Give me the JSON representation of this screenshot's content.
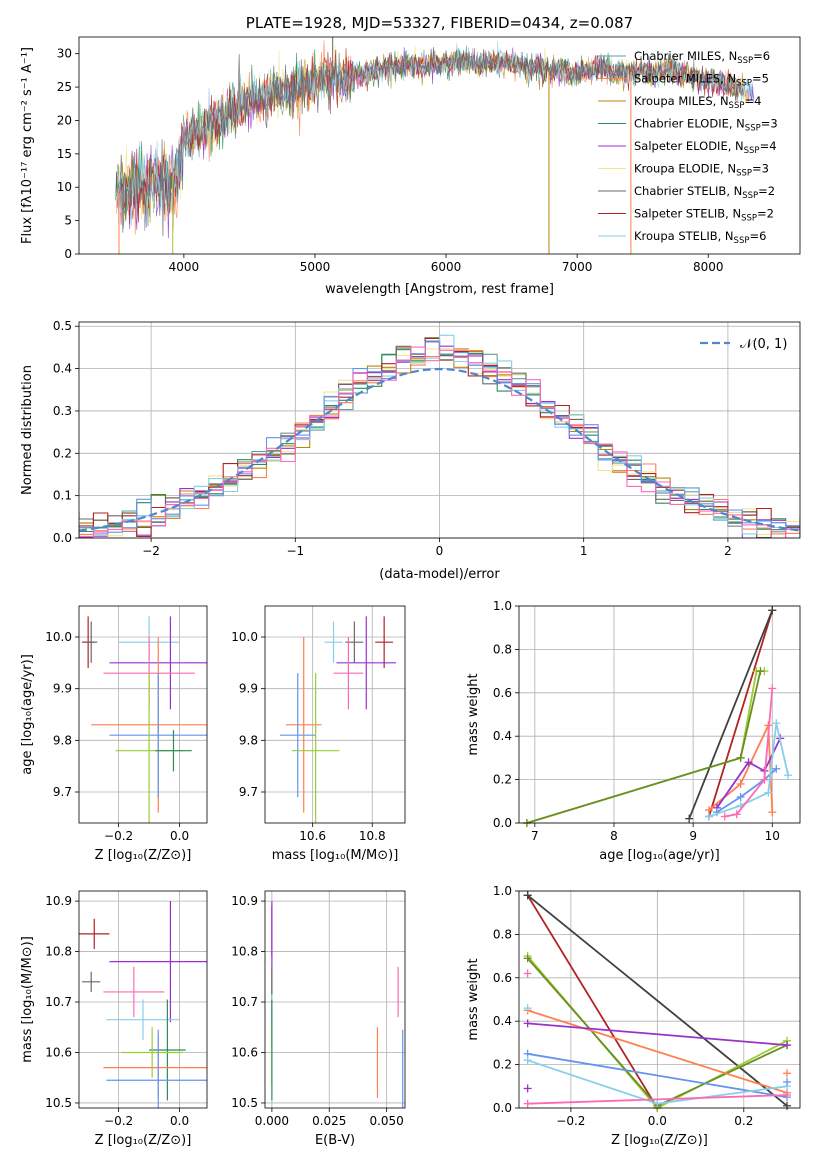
{
  "chart_data": [
    {
      "type": "line",
      "title": "PLATE=1928, MJD=53327, FIBERID=0434, z=0.087",
      "xlabel": "wavelength [Angstrom, rest frame]",
      "ylabel": "Flux [fλ10⁻¹⁷ erg cm⁻² s⁻¹ A⁻¹]",
      "xlim": [
        3200,
        8700
      ],
      "ylim": [
        0,
        32.5
      ],
      "xticks": [
        "4000",
        "5000",
        "6000",
        "7000",
        "8000"
      ],
      "yticks": [
        "0",
        "5",
        "10",
        "15",
        "20",
        "25",
        "30"
      ],
      "grid": false,
      "legend_position": "upper right",
      "continuum": {
        "x": [
          3480,
          3550,
          3650,
          3750,
          3850,
          3950,
          4000,
          4100,
          4200,
          4300,
          4400,
          4500,
          4600,
          4700,
          4800,
          4900,
          5000,
          5100,
          5200,
          5300,
          5400,
          5500,
          5600,
          5700,
          5800,
          5900,
          6000,
          6100,
          6200,
          6300,
          6400,
          6500,
          6600,
          6700,
          6800,
          6900,
          7000,
          7100,
          7200,
          7300,
          7400,
          7500,
          7600,
          7700,
          7800,
          7900,
          8000,
          8100,
          8200,
          8300,
          8350
        ],
        "y": [
          10,
          9,
          10,
          10.5,
          10.5,
          12,
          17,
          18,
          19,
          20.5,
          22,
          23,
          23.5,
          24,
          24.5,
          25,
          26,
          26.5,
          26,
          27,
          27,
          27.5,
          28,
          28.5,
          28,
          28.5,
          28.5,
          29,
          28.5,
          28.5,
          29,
          28.5,
          28,
          28,
          27.5,
          27.5,
          27,
          27.5,
          28,
          27,
          27,
          27.5,
          27,
          27.5,
          27,
          26.5,
          26,
          25.5,
          25,
          24.5,
          24
        ]
      },
      "series": [
        {
          "name": "Chabrier MILES, N<sub>SSP</sub>=6",
          "color": "#5f9ea0"
        },
        {
          "name": "Salpeter MILES, N<sub>SSP</sub>=5",
          "color": "#ff7f50"
        },
        {
          "name": "Kroupa MILES, N<sub>SSP</sub>=4",
          "color": "#b8860b"
        },
        {
          "name": "Chabrier ELODIE, N<sub>SSP</sub>=3",
          "color": "#2e8b57"
        },
        {
          "name": "Salpeter ELODIE, N<sub>SSP</sub>=4",
          "color": "#9932cc"
        },
        {
          "name": "Kroupa ELODIE, N<sub>SSP</sub>=3",
          "color": "#f0e68c"
        },
        {
          "name": "Chabrier STELIB, N<sub>SSP</sub>=2",
          "color": "#696969"
        },
        {
          "name": "Salpeter STELIB, N<sub>SSP</sub>=2",
          "color": "#b22222"
        },
        {
          "name": "Kroupa STELIB, N<sub>SSP</sub>=6",
          "color": "#87ceeb"
        }
      ]
    },
    {
      "type": "line",
      "xlabel": "(data-model)/error",
      "ylabel": "Normed distribution",
      "xlim": [
        -2.5,
        2.5
      ],
      "ylim": [
        0,
        0.51
      ],
      "xticks": [
        "−2",
        "−1",
        "0",
        "1",
        "2"
      ],
      "yticks": [
        "0.0",
        "0.1",
        "0.2",
        "0.3",
        "0.4",
        "0.5"
      ],
      "grid": true,
      "legend": "𝒩(0, 1)",
      "legend_position": "upper right",
      "gaussian": {
        "mu": 0,
        "sigma": 1
      },
      "histogram_bin_width": 0.1,
      "histogram_colors": [
        "#5f9ea0",
        "#ff7f50",
        "#b8860b",
        "#2e8b57",
        "#9932cc",
        "#f0e68c",
        "#696969",
        "#b22222",
        "#87ceeb",
        "#6495ed",
        "#ff69b4"
      ]
    },
    {
      "type": "scatter",
      "xlabel": "Z [log₁₀(Z/Z⊙)]",
      "ylabel": "age  [log₁₀(age/yr)]",
      "xlim": [
        -0.33,
        0.09
      ],
      "ylim": [
        9.64,
        10.06
      ],
      "xticks": [
        "−0.2",
        "0.0"
      ],
      "yticks": [
        "9.7",
        "9.8",
        "9.9",
        "10.0"
      ],
      "grid": true,
      "points": [
        {
          "x": -0.3,
          "y": 9.99,
          "xerr": 0.02,
          "yerr": 0.05,
          "color": "#b22222"
        },
        {
          "x": -0.29,
          "y": 9.99,
          "xerr": 0.02,
          "yerr": 0.04,
          "color": "#696969"
        },
        {
          "x": -0.1,
          "y": 9.99,
          "xerr": 0.1,
          "yerr": 0.05,
          "color": "#87ceeb"
        },
        {
          "x": -0.03,
          "y": 9.95,
          "xerr": 0.2,
          "yerr": 0.09,
          "color": "#9932cc"
        },
        {
          "x": -0.1,
          "y": 9.93,
          "xerr": 0.15,
          "yerr": 0.07,
          "color": "#ff69b4"
        },
        {
          "x": -0.07,
          "y": 9.83,
          "xerr": 0.22,
          "yerr": 0.17,
          "color": "#ff7f50"
        },
        {
          "x": -0.07,
          "y": 9.81,
          "xerr": 0.16,
          "yerr": 0.12,
          "color": "#6495ed"
        },
        {
          "x": -0.1,
          "y": 9.78,
          "xerr": 0.11,
          "yerr": 0.15,
          "color": "#9acd32"
        },
        {
          "x": -0.02,
          "y": 9.78,
          "xerr": 0.06,
          "yerr": 0.04,
          "color": "#2e8b57"
        }
      ]
    },
    {
      "type": "scatter",
      "xlabel": "mass [log₁₀(M/M⊙)]",
      "xlim": [
        10.44,
        10.91
      ],
      "ylim": [
        9.64,
        10.06
      ],
      "xticks": [
        "10.6",
        "10.8"
      ],
      "yticks": [
        "9.7",
        "9.8",
        "9.9",
        "10.0"
      ],
      "grid": true,
      "points": [
        {
          "x": 10.84,
          "y": 9.99,
          "xerr": 0.03,
          "yerr": 0.05,
          "color": "#b22222"
        },
        {
          "x": 10.74,
          "y": 9.99,
          "xerr": 0.03,
          "yerr": 0.04,
          "color": "#696969"
        },
        {
          "x": 10.67,
          "y": 9.99,
          "xerr": 0.03,
          "yerr": 0.04,
          "color": "#87ceeb"
        },
        {
          "x": 10.78,
          "y": 9.95,
          "xerr": 0.1,
          "yerr": 0.09,
          "color": "#9932cc"
        },
        {
          "x": 10.72,
          "y": 9.93,
          "xerr": 0.05,
          "yerr": 0.07,
          "color": "#ff69b4"
        },
        {
          "x": 10.57,
          "y": 9.83,
          "xerr": 0.06,
          "yerr": 0.17,
          "color": "#ff7f50"
        },
        {
          "x": 10.55,
          "y": 9.81,
          "xerr": 0.06,
          "yerr": 0.12,
          "color": "#6495ed"
        },
        {
          "x": 10.61,
          "y": 9.78,
          "xerr": 0.08,
          "yerr": 0.15,
          "color": "#9acd32"
        }
      ]
    },
    {
      "type": "line",
      "xlabel": "age  [log₁₀(age/yr)]",
      "ylabel": "mass weight",
      "xlim": [
        6.8,
        10.35
      ],
      "ylim": [
        0,
        1.0
      ],
      "xticks": [
        "7",
        "8",
        "9",
        "10"
      ],
      "yticks": [
        "0.0",
        "0.2",
        "0.4",
        "0.6",
        "0.8",
        "1.0"
      ],
      "grid": true,
      "series": [
        {
          "color": "#b22222",
          "x": [
            9.2,
            10.0
          ],
          "y": [
            0.03,
            0.98
          ]
        },
        {
          "color": "#404040",
          "x": [
            8.95,
            10.0
          ],
          "y": [
            0.02,
            0.98
          ]
        },
        {
          "color": "#9acd32",
          "x": [
            6.9,
            9.6,
            9.8,
            9.9
          ],
          "y": [
            0.0,
            0.3,
            0.7,
            0.7
          ]
        },
        {
          "color": "#6b8e23",
          "x": [
            6.9,
            9.6,
            9.85
          ],
          "y": [
            0.0,
            0.3,
            0.7
          ]
        },
        {
          "color": "#ff7f50",
          "x": [
            9.2,
            9.6,
            9.95,
            10.0
          ],
          "y": [
            0.06,
            0.18,
            0.45,
            0.05
          ]
        },
        {
          "color": "#9932cc",
          "x": [
            9.3,
            9.7,
            9.9,
            10.1
          ],
          "y": [
            0.07,
            0.28,
            0.24,
            0.39
          ]
        },
        {
          "color": "#6495ed",
          "x": [
            9.3,
            9.6,
            9.9,
            10.05
          ],
          "y": [
            0.05,
            0.12,
            0.2,
            0.25
          ]
        },
        {
          "color": "#87ceeb",
          "x": [
            9.2,
            9.6,
            9.95,
            10.05,
            10.2
          ],
          "y": [
            0.03,
            0.08,
            0.14,
            0.46,
            0.22
          ]
        },
        {
          "color": "#ff69b4",
          "x": [
            9.4,
            9.55,
            9.9,
            10.0
          ],
          "y": [
            0.03,
            0.04,
            0.2,
            0.62
          ]
        }
      ]
    },
    {
      "type": "scatter",
      "xlabel": "Z [log₁₀(Z/Z⊙)]",
      "ylabel": "mass [log₁₀(M/M⊙)]",
      "xlim": [
        -0.33,
        0.09
      ],
      "ylim": [
        10.49,
        10.92
      ],
      "xticks": [
        "−0.2",
        "0.0"
      ],
      "yticks": [
        "10.5",
        "10.6",
        "10.7",
        "10.8",
        "10.9"
      ],
      "grid": true,
      "points": [
        {
          "x": -0.28,
          "y": 10.835,
          "xerr": 0.05,
          "yerr": 0.03,
          "color": "#b22222"
        },
        {
          "x": -0.03,
          "y": 10.78,
          "xerr": 0.2,
          "yerr": 0.12,
          "color": "#9932cc"
        },
        {
          "x": -0.29,
          "y": 10.74,
          "xerr": 0.03,
          "yerr": 0.02,
          "color": "#696969"
        },
        {
          "x": -0.15,
          "y": 10.72,
          "xerr": 0.1,
          "yerr": 0.05,
          "color": "#ff69b4"
        },
        {
          "x": -0.12,
          "y": 10.665,
          "xerr": 0.12,
          "yerr": 0.04,
          "color": "#87ceeb"
        },
        {
          "x": -0.04,
          "y": 10.605,
          "xerr": 0.06,
          "yerr": 0.1,
          "color": "#2e8b57"
        },
        {
          "x": -0.09,
          "y": 10.6,
          "xerr": 0.1,
          "yerr": 0.05,
          "color": "#9acd32"
        },
        {
          "x": -0.07,
          "y": 10.57,
          "xerr": 0.18,
          "yerr": 0.06,
          "color": "#ff7f50"
        },
        {
          "x": -0.07,
          "y": 10.545,
          "xerr": 0.17,
          "yerr": 0.1,
          "color": "#6495ed"
        }
      ]
    },
    {
      "type": "scatter",
      "xlabel": "E(B-V)",
      "xlim": [
        -0.003,
        0.058
      ],
      "ylim": [
        10.49,
        10.92
      ],
      "xticks": [
        "0.000",
        "0.025",
        "0.050"
      ],
      "yticks": [
        "10.5",
        "10.6",
        "10.7",
        "10.8",
        "10.9"
      ],
      "grid": true,
      "points": [
        {
          "x": 0.0,
          "y": 10.84,
          "yerr": 0.05,
          "color": "#b22222"
        },
        {
          "x": 0.0,
          "y": 10.78,
          "yerr": 0.12,
          "color": "#9932cc"
        },
        {
          "x": 0.0,
          "y": 10.74,
          "yerr": 0.03,
          "color": "#696969"
        },
        {
          "x": 0.0,
          "y": 10.665,
          "yerr": 0.05,
          "color": "#87ceeb"
        },
        {
          "x": 0.0,
          "y": 10.6,
          "yerr": 0.06,
          "color": "#9acd32"
        },
        {
          "x": 0.0,
          "y": 10.605,
          "yerr": 0.1,
          "color": "#2e8b57"
        },
        {
          "x": 0.055,
          "y": 10.72,
          "yerr": 0.05,
          "color": "#ff69b4"
        },
        {
          "x": 0.046,
          "y": 10.58,
          "yerr": 0.07,
          "color": "#ff7f50"
        },
        {
          "x": 0.057,
          "y": 10.545,
          "yerr": 0.1,
          "color": "#6495ed"
        }
      ]
    },
    {
      "type": "line",
      "xlabel": "Z [log₁₀(Z/Z⊙)]",
      "ylabel": "mass weight",
      "xlim": [
        -0.32,
        0.33
      ],
      "ylim": [
        0,
        1.0
      ],
      "xticks": [
        "−0.2",
        "0.0",
        "0.2"
      ],
      "yticks": [
        "0.0",
        "0.2",
        "0.4",
        "0.6",
        "0.8",
        "1.0"
      ],
      "grid": true,
      "series": [
        {
          "color": "#b22222",
          "x": [
            -0.3,
            0.0
          ],
          "y": [
            0.98,
            0.0
          ]
        },
        {
          "color": "#404040",
          "x": [
            -0.3,
            0.3
          ],
          "y": [
            0.98,
            0.01
          ]
        },
        {
          "color": "#9acd32",
          "x": [
            -0.3,
            0.0,
            0.3
          ],
          "y": [
            0.7,
            0.0,
            0.31
          ]
        },
        {
          "color": "#6b8e23",
          "x": [
            -0.3,
            0.0,
            0.3
          ],
          "y": [
            0.69,
            0.01,
            0.29
          ]
        },
        {
          "color": "#ff7f50",
          "x": [
            -0.3,
            0.3
          ],
          "y": [
            0.45,
            0.07
          ]
        },
        {
          "color": "#9932cc",
          "x": [
            -0.3,
            0.3
          ],
          "y": [
            0.39,
            0.29
          ]
        },
        {
          "color": "#6495ed",
          "x": [
            -0.3,
            0.3
          ],
          "y": [
            0.25,
            0.05
          ]
        },
        {
          "color": "#87ceeb",
          "x": [
            -0.3,
            0.0,
            0.3
          ],
          "y": [
            0.22,
            0.02,
            0.1
          ]
        },
        {
          "color": "#ff69b4",
          "x": [
            -0.3,
            0.3
          ],
          "y": [
            0.02,
            0.06
          ]
        }
      ],
      "extra_markers": [
        {
          "color": "#ff69b4",
          "x": -0.3,
          "y": 0.62
        },
        {
          "color": "#87ceeb",
          "x": -0.3,
          "y": 0.46
        },
        {
          "color": "#9932cc",
          "x": -0.3,
          "y": 0.09
        },
        {
          "color": "#ff7f50",
          "x": 0.3,
          "y": 0.16
        },
        {
          "color": "#6495ed",
          "x": 0.3,
          "y": 0.12
        }
      ]
    }
  ]
}
